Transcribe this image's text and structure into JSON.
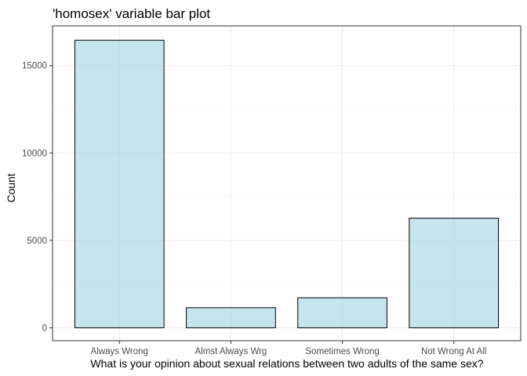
{
  "chart_data": {
    "type": "bar",
    "title": "'homosex' variable bar plot",
    "xlabel": "What is your opinion about sexual relations between two adults of the same sex?",
    "ylabel": "Count",
    "categories": [
      "Always Wrong",
      "Almst Always Wrg",
      "Sometimes Wrong",
      "Not Wrong At All"
    ],
    "values": [
      16450,
      1150,
      1720,
      6270
    ],
    "ylim": [
      -740,
      17270
    ],
    "yticks": [
      0,
      5000,
      10000,
      15000
    ],
    "ytick_labels": [
      "0",
      "5000",
      "10000",
      "15000"
    ],
    "grid": true,
    "colors": {
      "bar_fill": "#add8e6",
      "bar_stroke": "#000000",
      "grid": "#ebebeb",
      "border": "#333333"
    }
  }
}
